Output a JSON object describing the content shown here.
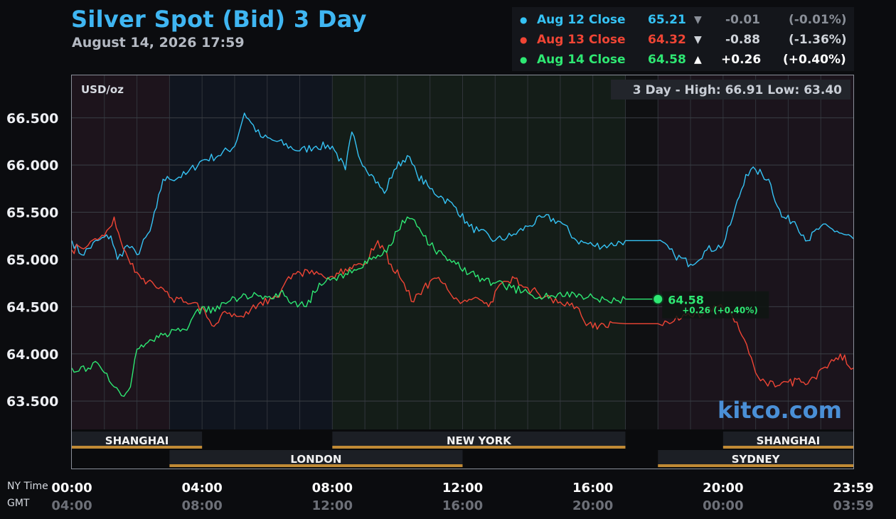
{
  "header": {
    "title": "Silver Spot (Bid) 3 Day",
    "timestamp": "August 14, 2026 17:59"
  },
  "legend": [
    {
      "label": "Aug 12 Close",
      "value": "65.21",
      "arrow": "▼",
      "change": "-0.01",
      "pct": "(-0.01%)",
      "color": "#35c3f5",
      "change_color": "#8a8f98"
    },
    {
      "label": "Aug 13 Close",
      "value": "64.32",
      "arrow": "▼",
      "change": "-0.88",
      "pct": "(-1.36%)",
      "color": "#f04535",
      "change_color": "#d0d4da"
    },
    {
      "label": "Aug 14 Close",
      "value": "64.58",
      "arrow": "▲",
      "change": "+0.26",
      "pct": "(+0.40%)",
      "color": "#2ee873",
      "change_color": "#ffffff"
    }
  ],
  "info": {
    "unit": "USD/oz",
    "range_text": "3 Day - High: 66.91  Low: 63.40",
    "last_label": "64.58",
    "last_change": "+0.26 (+0.40%)",
    "watermark": "kitco.com",
    "ny_time_caption": "NY Time",
    "gmt_caption": "GMT"
  },
  "sessions": [
    {
      "name": "SHANGHAI",
      "start": 0,
      "end": 4,
      "row": 1
    },
    {
      "name": "NEW YORK",
      "start": 8,
      "end": 17,
      "row": 1
    },
    {
      "name": "SHANGHAI",
      "start": 20,
      "end": 24,
      "row": 1
    },
    {
      "name": "LONDON",
      "start": 3,
      "end": 12,
      "row": 2
    },
    {
      "name": "SYDNEY",
      "start": 18,
      "end": 24,
      "row": 2
    }
  ],
  "chart_data": {
    "type": "line",
    "title": "Silver Spot (Bid) 3 Day",
    "ylabel": "USD/oz",
    "y_range": [
      63.2,
      66.95
    ],
    "x_range_hours": [
      0,
      24
    ],
    "y_ticks": [
      "66.500",
      "66.000",
      "65.500",
      "65.000",
      "64.500",
      "64.000",
      "63.500"
    ],
    "y_tick_values": [
      66.5,
      66.0,
      65.5,
      65.0,
      64.5,
      64.0,
      63.5
    ],
    "x_ticks_ny": [
      "00:00",
      "04:00",
      "08:00",
      "12:00",
      "16:00",
      "20:00",
      "23:59"
    ],
    "x_ticks_gmt": [
      "04:00",
      "08:00",
      "12:00",
      "16:00",
      "20:00",
      "00:00",
      "03:59"
    ],
    "x_tick_hours": [
      0,
      4,
      8,
      12,
      16,
      20,
      24
    ],
    "grid": true,
    "high": 66.91,
    "low": 63.4,
    "series": [
      {
        "name": "Aug 12 Close",
        "color": "#35c3f5",
        "x": [
          0,
          0.3,
          0.8,
          1.2,
          1.4,
          1.7,
          2.0,
          2.4,
          2.6,
          2.8,
          3.0,
          3.5,
          4.0,
          4.5,
          5.0,
          5.3,
          5.5,
          5.8,
          6.3,
          7.0,
          7.5,
          8.0,
          8.4,
          8.6,
          8.8,
          9.2,
          9.6,
          9.9,
          10.3,
          10.6,
          11.0,
          11.4,
          11.8,
          12.2,
          12.5,
          13.0,
          13.5,
          14.0,
          14.5,
          15.0,
          15.5,
          16.0,
          16.5,
          17.0,
          18.0,
          18.5,
          19.0,
          19.5,
          20.0,
          20.3,
          20.7,
          21.0,
          21.4,
          21.8,
          22.2,
          22.6,
          23.0,
          23.5,
          24.0
        ],
        "y": [
          65.2,
          65.05,
          65.2,
          65.25,
          65.0,
          65.15,
          65.05,
          65.3,
          65.55,
          65.85,
          65.85,
          65.9,
          66.05,
          66.1,
          66.2,
          66.55,
          66.45,
          66.3,
          66.25,
          66.15,
          66.2,
          66.2,
          65.95,
          66.35,
          66.1,
          65.9,
          65.7,
          65.95,
          66.1,
          65.9,
          65.75,
          65.65,
          65.55,
          65.35,
          65.3,
          65.2,
          65.25,
          65.35,
          65.45,
          65.4,
          65.2,
          65.15,
          65.15,
          65.2,
          65.2,
          65.05,
          64.95,
          65.1,
          65.15,
          65.45,
          65.9,
          65.95,
          65.85,
          65.45,
          65.4,
          65.2,
          65.35,
          65.3,
          65.22
        ]
      },
      {
        "name": "Aug 13 Close",
        "color": "#f04535",
        "x": [
          0,
          0.5,
          1.0,
          1.3,
          1.5,
          1.8,
          2.2,
          2.6,
          3.0,
          3.5,
          4.0,
          4.3,
          4.7,
          5.2,
          5.8,
          6.3,
          6.8,
          7.3,
          7.8,
          8.2,
          8.6,
          9.0,
          9.4,
          9.8,
          10.2,
          10.5,
          10.8,
          11.2,
          11.6,
          12.0,
          12.4,
          12.8,
          13.2,
          13.6,
          14.0,
          14.5,
          15.0,
          15.5,
          15.8,
          16.2,
          16.6,
          17.0,
          18.0,
          18.5,
          19.0,
          19.5,
          19.8,
          20.2,
          20.5,
          20.8,
          21.0,
          21.3,
          21.6,
          22.0,
          22.4,
          22.8,
          23.2,
          23.6,
          24.0
        ],
        "y": [
          65.1,
          65.15,
          65.25,
          65.45,
          65.2,
          64.95,
          64.8,
          64.7,
          64.6,
          64.55,
          64.5,
          64.3,
          64.45,
          64.4,
          64.55,
          64.6,
          64.85,
          64.85,
          64.8,
          64.85,
          64.9,
          64.95,
          65.2,
          64.95,
          64.75,
          64.55,
          64.7,
          64.8,
          64.65,
          64.55,
          64.6,
          64.5,
          64.75,
          64.8,
          64.7,
          64.6,
          64.55,
          64.5,
          64.3,
          64.3,
          64.33,
          64.32,
          64.32,
          64.35,
          64.4,
          64.45,
          64.5,
          64.45,
          64.25,
          64.0,
          63.8,
          63.7,
          63.65,
          63.7,
          63.7,
          63.75,
          63.85,
          64.0,
          63.85
        ]
      },
      {
        "name": "Aug 14 Close",
        "color": "#2ee873",
        "x": [
          0,
          0.5,
          0.8,
          1.0,
          1.3,
          1.6,
          1.8,
          2.0,
          2.4,
          2.8,
          3.2,
          3.6,
          4.0,
          4.4,
          4.8,
          5.2,
          5.6,
          6.0,
          6.4,
          6.8,
          7.2,
          7.6,
          8.0,
          8.4,
          8.8,
          9.2,
          9.6,
          9.8,
          10.0,
          10.3,
          10.6,
          11.0,
          11.4,
          11.8,
          12.2,
          12.6,
          13.0,
          13.5,
          14.0,
          14.5,
          15.0,
          15.5,
          16.0,
          16.5,
          17.0,
          18.0
        ],
        "y": [
          63.85,
          63.85,
          63.9,
          63.8,
          63.65,
          63.55,
          63.65,
          64.05,
          64.15,
          64.2,
          64.25,
          64.3,
          64.5,
          64.45,
          64.55,
          64.6,
          64.65,
          64.6,
          64.65,
          64.55,
          64.5,
          64.75,
          64.8,
          64.85,
          64.9,
          65.0,
          65.1,
          65.15,
          65.3,
          65.45,
          65.35,
          65.15,
          65.05,
          64.95,
          64.85,
          64.8,
          64.75,
          64.7,
          64.65,
          64.6,
          64.65,
          64.6,
          64.6,
          64.55,
          64.58,
          64.58
        ]
      }
    ]
  }
}
